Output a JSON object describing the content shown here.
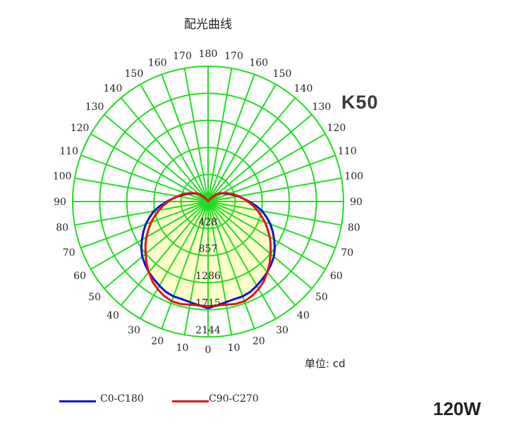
{
  "title": "配光曲线",
  "model": "K50",
  "unit_label": "单位: cd",
  "power_label": "120W",
  "colors": {
    "grid": "#22dd22",
    "fill": "#ffffcc",
    "c0": "#0a14d8",
    "c90": "#e41414"
  },
  "chart_data": {
    "type": "polar",
    "title": "配光曲线",
    "unit": "cd",
    "angle_ticks": [
      0,
      10,
      20,
      30,
      40,
      50,
      60,
      70,
      80,
      90,
      100,
      110,
      120,
      130,
      140,
      150,
      160,
      170,
      180
    ],
    "radial_ticks": [
      428,
      857,
      1286,
      1715,
      2144
    ],
    "radial_max": 2144,
    "series": [
      {
        "name": "C0-C180",
        "color": "#0a14d8",
        "angles": [
          0,
          5,
          10,
          15,
          20,
          25,
          30,
          35,
          40,
          45,
          50,
          55,
          60,
          65,
          70,
          75,
          80,
          85,
          90,
          95,
          100,
          105,
          110,
          115,
          120,
          125,
          130,
          135,
          140,
          145,
          150,
          155,
          160,
          165,
          170,
          175,
          180
        ],
        "values": [
          1690,
          1650,
          1620,
          1600,
          1600,
          1580,
          1540,
          1500,
          1460,
          1410,
          1360,
          1290,
          1210,
          1130,
          1050,
          960,
          870,
          760,
          650,
          560,
          480,
          410,
          350,
          300,
          260,
          230,
          180,
          110,
          60,
          30,
          20,
          15,
          10,
          10,
          10,
          10,
          10
        ]
      },
      {
        "name": "C90-C270",
        "color": "#e41414",
        "angles": [
          0,
          5,
          10,
          15,
          20,
          25,
          30,
          35,
          40,
          45,
          50,
          55,
          60,
          65,
          70,
          75,
          80,
          85,
          90,
          95,
          100,
          105,
          110,
          115,
          120,
          125,
          130,
          135,
          140,
          145,
          150,
          155,
          160,
          165,
          170,
          175,
          180
        ],
        "values": [
          1660,
          1650,
          1660,
          1680,
          1680,
          1650,
          1600,
          1540,
          1460,
          1380,
          1290,
          1210,
          1130,
          1040,
          960,
          870,
          790,
          710,
          630,
          560,
          490,
          430,
          370,
          320,
          270,
          230,
          180,
          110,
          60,
          30,
          20,
          15,
          10,
          10,
          10,
          10,
          10
        ]
      }
    ]
  },
  "legend": [
    {
      "label": "C0-C180",
      "color": "#0a14d8"
    },
    {
      "label": "C90-C270",
      "color": "#e41414"
    }
  ]
}
